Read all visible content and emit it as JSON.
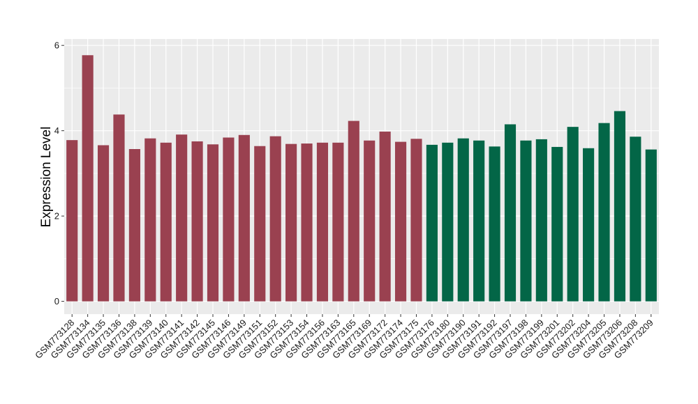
{
  "chart_data": {
    "type": "bar",
    "ylabel": "Expression Level",
    "xlabel": "",
    "ylim": [
      -0.3,
      6.15
    ],
    "yticks": [
      0,
      2,
      4,
      6
    ],
    "grid": true,
    "categories": [
      "GSM773128",
      "GSM773134",
      "GSM773135",
      "GSM773136",
      "GSM773138",
      "GSM773139",
      "GSM773140",
      "GSM773141",
      "GSM773142",
      "GSM773145",
      "GSM773146",
      "GSM773149",
      "GSM773151",
      "GSM773152",
      "GSM773153",
      "GSM773154",
      "GSM773156",
      "GSM773163",
      "GSM773165",
      "GSM773169",
      "GSM773172",
      "GSM773174",
      "GSM773175",
      "GSM773176",
      "GSM773180",
      "GSM773190",
      "GSM773191",
      "GSM773192",
      "GSM773197",
      "GSM773198",
      "GSM773199",
      "GSM773201",
      "GSM773202",
      "GSM773204",
      "GSM773205",
      "GSM773206",
      "GSM773208",
      "GSM773209"
    ],
    "values": [
      3.78,
      5.77,
      3.66,
      4.38,
      3.57,
      3.82,
      3.72,
      3.91,
      3.75,
      3.68,
      3.84,
      3.9,
      3.64,
      3.87,
      3.69,
      3.7,
      3.72,
      3.72,
      4.23,
      3.77,
      3.98,
      3.74,
      3.81,
      3.67,
      3.72,
      3.82,
      3.77,
      3.63,
      4.15,
      3.77,
      3.8,
      3.62,
      4.09,
      3.59,
      4.18,
      4.46,
      3.86,
      3.56
    ],
    "groups": [
      0,
      0,
      0,
      0,
      0,
      0,
      0,
      0,
      0,
      0,
      0,
      0,
      0,
      0,
      0,
      0,
      0,
      0,
      0,
      0,
      0,
      0,
      0,
      1,
      1,
      1,
      1,
      1,
      1,
      1,
      1,
      1,
      1,
      1,
      1,
      1,
      1,
      1
    ],
    "group_colors": [
      "#9a4150",
      "#036647"
    ],
    "panel_background": "#ebebeb",
    "grid_color": "#ffffff"
  }
}
